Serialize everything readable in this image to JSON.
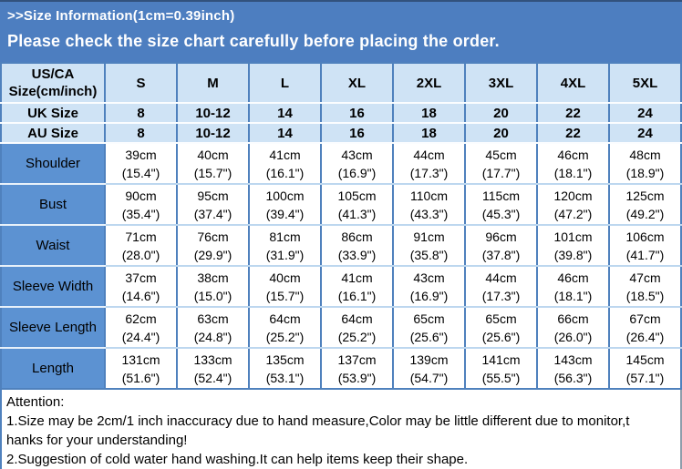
{
  "banner": {
    "title": ">>Size Information(1cm=0.39inch)",
    "subtitle": "Please check the size chart carefully before placing the order."
  },
  "table": {
    "rows": [
      {
        "type": "header",
        "cells": [
          "US/CA\nSize(cm/inch)",
          "S",
          "M",
          "L",
          "XL",
          "2XL",
          "3XL",
          "4XL",
          "5XL"
        ]
      },
      {
        "type": "size",
        "cells": [
          "UK Size",
          "8",
          "10-12",
          "14",
          "16",
          "18",
          "20",
          "22",
          "24"
        ]
      },
      {
        "type": "size",
        "cells": [
          "AU Size",
          "8",
          "10-12",
          "14",
          "16",
          "18",
          "20",
          "22",
          "24"
        ]
      },
      {
        "type": "measure",
        "cells": [
          "Shoulder",
          "39cm\n(15.4\")",
          "40cm\n(15.7\")",
          "41cm\n(16.1\")",
          "43cm\n(16.9\")",
          "44cm\n(17.3\")",
          "45cm\n(17.7\")",
          "46cm\n(18.1\")",
          "48cm\n(18.9\")"
        ]
      },
      {
        "type": "measure",
        "cells": [
          "Bust",
          "90cm\n(35.4\")",
          "95cm\n(37.4\")",
          "100cm\n(39.4\")",
          "105cm\n(41.3\")",
          "110cm\n(43.3\")",
          "115cm\n(45.3\")",
          "120cm\n(47.2\")",
          "125cm\n(49.2\")"
        ]
      },
      {
        "type": "measure",
        "cells": [
          "Waist",
          "71cm\n(28.0\")",
          "76cm\n(29.9\")",
          "81cm\n(31.9\")",
          "86cm\n(33.9\")",
          "91cm\n(35.8\")",
          "96cm\n(37.8\")",
          "101cm\n(39.8\")",
          "106cm\n(41.7\")"
        ]
      },
      {
        "type": "measure",
        "cells": [
          "Sleeve Width",
          "37cm\n(14.6\")",
          "38cm\n(15.0\")",
          "40cm\n(15.7\")",
          "41cm\n(16.1\")",
          "43cm\n(16.9\")",
          "44cm\n(17.3\")",
          "46cm\n(18.1\")",
          "47cm\n(18.5\")"
        ]
      },
      {
        "type": "measure",
        "cells": [
          "Sleeve Length",
          "62cm\n(24.4\")",
          "63cm\n(24.8\")",
          "64cm\n(25.2\")",
          "64cm\n(25.2\")",
          "65cm\n(25.6\")",
          "65cm\n(25.6\")",
          "66cm\n(26.0\")",
          "67cm\n(26.4\")"
        ]
      },
      {
        "type": "measure",
        "cells": [
          "Length",
          "131cm\n(51.6\")",
          "133cm\n(52.4\")",
          "135cm\n(53.1\")",
          "137cm\n(53.9\")",
          "139cm\n(54.7\")",
          "141cm\n(55.5\")",
          "143cm\n(56.3\")",
          "145cm\n(57.1\")"
        ]
      }
    ]
  },
  "attention": {
    "lines": [
      "Attention:",
      "1.Size may be 2cm/1 inch inaccuracy due to hand measure,Color may be little different due to monitor,t",
      "hanks for your understanding!",
      "2.Suggestion of cold water hand washing.It can help items keep their shape."
    ]
  },
  "colors": {
    "banner_blue": "#4d7ec0",
    "label_cell_blue": "#5c92d2",
    "light_cell_blue": "#cfe3f5",
    "border_blue": "#4f81bd",
    "text_black": "#000000",
    "text_white": "#ffffff"
  }
}
